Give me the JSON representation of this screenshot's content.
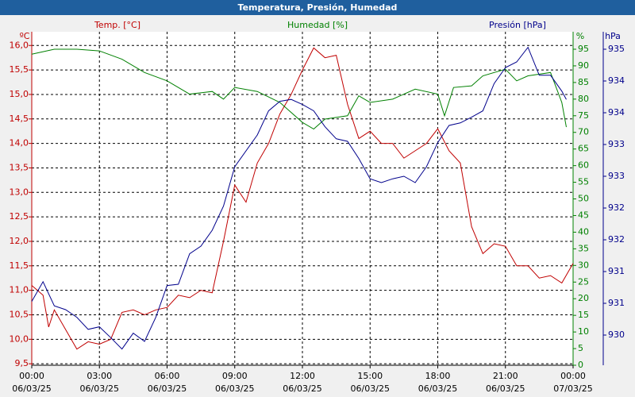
{
  "chart_data": {
    "type": "line",
    "title": "Temperatura, Presión, Humedad",
    "ylabel": "Temp. [°C]",
    "y2label": "Humedad [%]",
    "y3label": "Presión [hPa]",
    "yunit": "ºC",
    "y2unit": "%",
    "y3unit": "hPa",
    "xlim": [
      0,
      24
    ],
    "xticks": [
      {
        "value": 0,
        "label": "00:00"
      },
      {
        "value": 3,
        "label": "03:00"
      },
      {
        "value": 6,
        "label": "06:00"
      },
      {
        "value": 9,
        "label": "09:00"
      },
      {
        "value": 12,
        "label": "12:00"
      },
      {
        "value": 15,
        "label": "15:00"
      },
      {
        "value": 18,
        "label": "18:00"
      },
      {
        "value": 21,
        "label": "21:00"
      },
      {
        "value": 24,
        "label": "00:00"
      }
    ],
    "xtick_dates": [
      "06/03/25",
      "06/03/25",
      "06/03/25",
      "06/03/25",
      "06/03/25",
      "06/03/25",
      "06/03/25",
      "06/03/25",
      "07/03/25"
    ],
    "ylim": [
      9.47,
      16.28
    ],
    "yticks": [
      {
        "value": 9.5,
        "label": "9,5"
      },
      {
        "value": 10,
        "label": "10,0"
      },
      {
        "value": 10.5,
        "label": "10,5"
      },
      {
        "value": 11,
        "label": "11,0"
      },
      {
        "value": 11.5,
        "label": "11,5"
      },
      {
        "value": 12,
        "label": "12,0"
      },
      {
        "value": 12.5,
        "label": "12,5"
      },
      {
        "value": 13,
        "label": "13,0"
      },
      {
        "value": 13.5,
        "label": "13,5"
      },
      {
        "value": 14,
        "label": "14,0"
      },
      {
        "value": 14.5,
        "label": "14,5"
      },
      {
        "value": 15,
        "label": "15,0"
      },
      {
        "value": 15.5,
        "label": "15,5"
      },
      {
        "value": 16,
        "label": "16,0"
      }
    ],
    "y2lim": [
      0,
      100.25
    ],
    "y2ticks": [
      0,
      5,
      10,
      15,
      20,
      25,
      30,
      35,
      40,
      45,
      50,
      55,
      60,
      65,
      70,
      75,
      80,
      85,
      90,
      95
    ],
    "y3lim": [
      929.925,
      935.175
    ],
    "y3ticks": [
      {
        "value": 930.4,
        "label": "930"
      },
      {
        "value": 930.9,
        "label": "931"
      },
      {
        "value": 931.4,
        "label": "931"
      },
      {
        "value": 931.9,
        "label": "932"
      },
      {
        "value": 932.4,
        "label": "932"
      },
      {
        "value": 932.9,
        "label": "933"
      },
      {
        "value": 933.4,
        "label": "933"
      },
      {
        "value": 933.9,
        "label": "934"
      },
      {
        "value": 934.4,
        "label": "934"
      },
      {
        "value": 934.9,
        "label": "935"
      }
    ],
    "grid": true,
    "series": [
      {
        "name": "Temp. [°C]",
        "color": "#c00000",
        "axis": "y",
        "x": [
          0,
          0.5,
          0.75,
          1,
          1.5,
          2,
          2.5,
          3,
          3.5,
          4,
          4.5,
          5,
          5.5,
          6,
          6.5,
          7,
          7.5,
          8,
          8.5,
          9,
          9.5,
          10,
          10.5,
          11,
          11.5,
          12,
          12.5,
          13,
          13.5,
          14,
          14.5,
          15,
          15.5,
          16,
          16.5,
          17,
          17.5,
          18,
          18.5,
          19,
          19.5,
          20,
          20.5,
          21,
          21.5,
          22,
          22.5,
          23,
          23.5,
          24
        ],
        "values": [
          11.1,
          10.9,
          10.25,
          10.6,
          10.2,
          9.8,
          9.95,
          9.9,
          10.0,
          10.55,
          10.6,
          10.5,
          10.6,
          10.65,
          10.9,
          10.85,
          11.0,
          10.95,
          12.0,
          13.15,
          12.8,
          13.6,
          14.0,
          14.6,
          15.0,
          15.5,
          15.95,
          15.75,
          15.8,
          14.8,
          14.1,
          14.25,
          14.0,
          14.0,
          13.7,
          13.85,
          14.0,
          14.3,
          13.85,
          13.6,
          12.3,
          11.75,
          11.95,
          11.9,
          11.5,
          11.5,
          11.25,
          11.3,
          11.15,
          11.55
        ]
      },
      {
        "name": "Humedad [%]",
        "color": "#008000",
        "axis": "y2",
        "x": [
          0,
          1,
          2,
          3,
          4,
          5,
          6,
          7,
          8,
          8.5,
          9,
          10,
          11,
          12,
          12.5,
          13,
          14,
          14.5,
          15,
          16,
          17,
          18,
          18.3,
          18.7,
          19.5,
          20,
          21,
          21.5,
          22,
          23,
          23.5,
          23.7
        ],
        "values": [
          93.5,
          95,
          95,
          94.5,
          92,
          88,
          85.5,
          81.5,
          82.3,
          80,
          83.5,
          82.3,
          79,
          73,
          71,
          74,
          75,
          81,
          79,
          80,
          83,
          81.5,
          75,
          83.5,
          84,
          87,
          89,
          85.5,
          87,
          88,
          79,
          71.6
        ]
      },
      {
        "name": "Presión [hPa]",
        "color": "#00008b",
        "axis": "y3",
        "x": [
          0,
          0.5,
          1,
          1.5,
          2,
          2.5,
          3,
          3.5,
          4,
          4.5,
          5,
          5.5,
          6,
          6.5,
          7,
          7.5,
          8,
          8.5,
          9,
          10,
          10.5,
          11,
          11.5,
          12,
          12.5,
          13,
          13.5,
          14,
          14.5,
          15,
          15.5,
          16,
          16.5,
          17,
          17.5,
          18,
          18.5,
          19,
          19.5,
          20,
          20.5,
          21,
          21.5,
          22,
          22.5,
          23,
          23.5,
          23.7
        ],
        "values": [
          930.93,
          931.24,
          930.86,
          930.8,
          930.68,
          930.49,
          930.53,
          930.36,
          930.18,
          930.43,
          930.3,
          930.68,
          931.18,
          931.2,
          931.68,
          931.8,
          932.05,
          932.43,
          933.05,
          933.55,
          933.93,
          934.08,
          934.11,
          934.03,
          933.93,
          933.68,
          933.49,
          933.45,
          933.18,
          932.86,
          932.8,
          932.86,
          932.9,
          932.8,
          933.05,
          933.43,
          933.7,
          933.74,
          933.83,
          933.93,
          934.36,
          934.61,
          934.7,
          934.93,
          934.49,
          934.49,
          934.24,
          934.11
        ]
      }
    ]
  }
}
